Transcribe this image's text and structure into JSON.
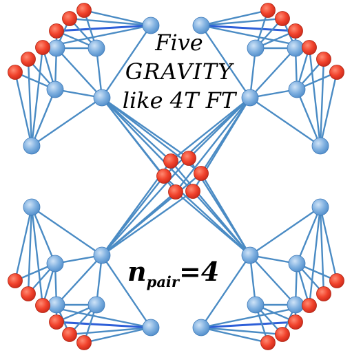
{
  "title": {
    "line1": "Five",
    "line2": "GRAVITY",
    "line3": "like 4T FT"
  },
  "label": {
    "n": "n",
    "sub": "pair",
    "eq": "=4"
  },
  "colors": {
    "edge": "#4a8bc4",
    "edge_strong": "#2e5fd8",
    "node_blue": "#6fa8dc",
    "node_blue_stroke": "#3d79b8",
    "node_red": "#ee3b26",
    "node_red_stroke": "#b02412"
  },
  "icons": [
    "graph-node-blue",
    "graph-node-red"
  ]
}
